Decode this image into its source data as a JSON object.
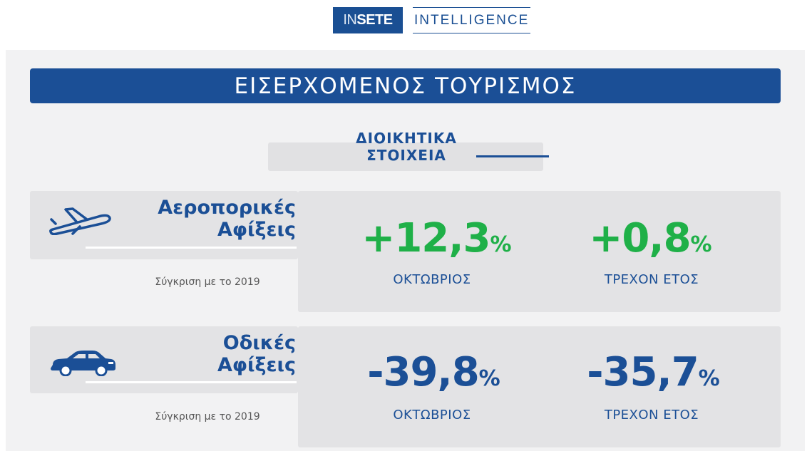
{
  "logo": {
    "part1": "IN",
    "part2": "SETE",
    "text": "INTELLIGENCE"
  },
  "banner": {
    "title": "ΕΙΣΕΡΧΟΜΕΝΟΣ ΤΟΥΡΙΣΜΟΣ"
  },
  "subhead": {
    "line1": "ΔΙΟΙΚΗΤΙΚΑ",
    "line2": "ΣΤΟΙΧΕΙΑ"
  },
  "air": {
    "icon": "airplane-icon",
    "title_line1": "Αεροπορικές",
    "title_line2": "Αφίξεις",
    "compare": "Σύγκριση με το 2019",
    "month_value": "+12,3",
    "month_pct": "%",
    "month_label": "ΟΚΤΩΒΡΙΟΣ",
    "year_value": "+0,8",
    "year_pct": "%",
    "year_label": "ΤΡΕΧΟΝ ΕΤΟΣ"
  },
  "road": {
    "icon": "car-icon",
    "title_line1": "Οδικές",
    "title_line2": "Αφίξεις",
    "compare": "Σύγκριση με το 2019",
    "month_value": "-39,8",
    "month_pct": "%",
    "month_label": "ΟΚΤΩΒΡΙΟΣ",
    "year_value": "-35,7",
    "year_pct": "%",
    "year_label": "ΤΡΕΧΟΝ ΕΤΟΣ"
  },
  "colors": {
    "brand_blue": "#1b4f96",
    "positive_green": "#1fb048",
    "panel": "#f2f2f3",
    "card": "#e3e3e5"
  }
}
